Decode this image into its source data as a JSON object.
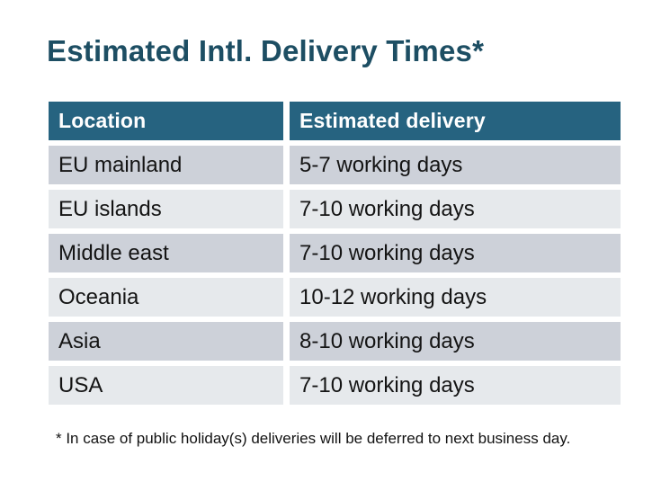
{
  "page": {
    "title": "Estimated Intl. Delivery Times*",
    "footnote": "* In case of public holiday(s) deliveries will be deferred to next business day."
  },
  "table": {
    "headers": [
      "Location",
      "Estimated delivery"
    ],
    "rows": [
      {
        "location": "EU mainland",
        "delivery": "5-7 working days"
      },
      {
        "location": "EU islands",
        "delivery": "7-10 working days"
      },
      {
        "location": "Middle east",
        "delivery": "7-10 working days"
      },
      {
        "location": "Oceania",
        "delivery": "10-12 working days"
      },
      {
        "location": "Asia",
        "delivery": "8-10 working days"
      },
      {
        "location": "USA",
        "delivery": "7-10 working days"
      }
    ]
  },
  "chart_data": {
    "type": "table",
    "title": "Estimated Intl. Delivery Times*",
    "columns": [
      "Location",
      "Estimated delivery"
    ],
    "rows": [
      [
        "EU mainland",
        "5-7 working days"
      ],
      [
        "EU islands",
        "7-10 working days"
      ],
      [
        "Middle east",
        "7-10 working days"
      ],
      [
        "Oceania",
        "10-12 working days"
      ],
      [
        "Asia",
        "8-10 working days"
      ],
      [
        "USA",
        "7-10 working days"
      ]
    ],
    "footnote": "* In case of public holiday(s) deliveries will be deferred to next business day."
  },
  "colors": {
    "title_text": "#1d4e63",
    "header_bg": "#266380",
    "header_text": "#ffffff",
    "row_band_dark": "#cdd1d9",
    "row_band_light": "#e6e9ec",
    "body_text": "#141414",
    "background": "#ffffff"
  }
}
